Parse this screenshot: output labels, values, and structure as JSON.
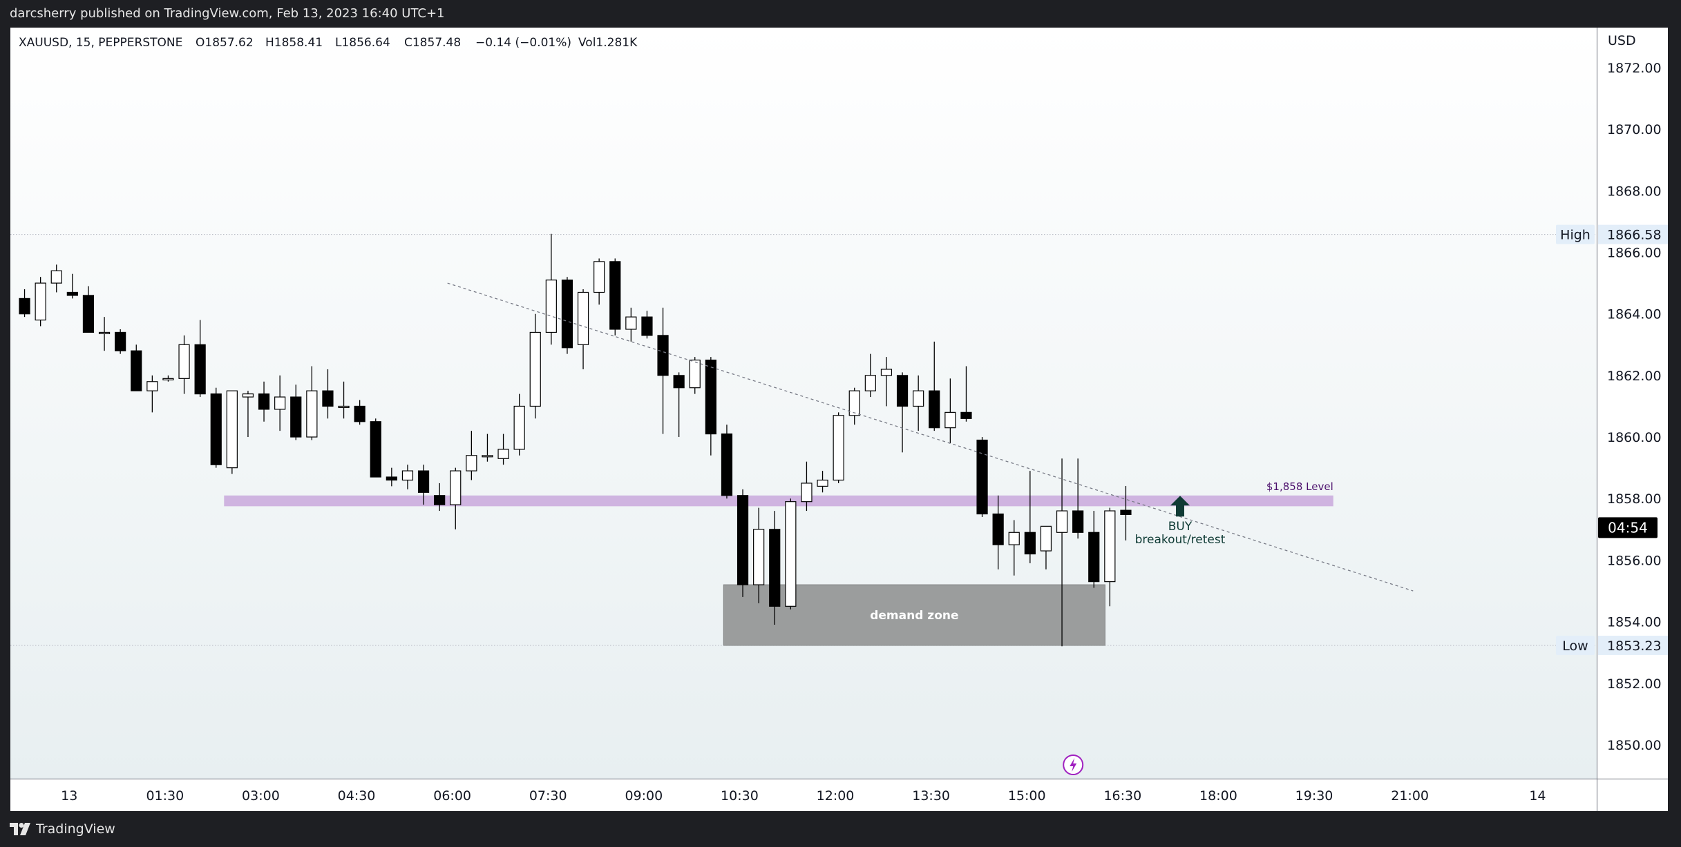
{
  "header": {
    "published": "darcsherry published on TradingView.com, Feb 13, 2023 16:40 UTC+1"
  },
  "legend": {
    "symbol": "XAUUSD, 15, PEPPERSTONE",
    "open": "O1857.62",
    "high": "H1858.41",
    "low": "L1856.64",
    "close": "C1857.48",
    "change": "−0.14 (−0.01%)",
    "volume": "Vol1.281K"
  },
  "footer": {
    "brand": "TradingView"
  },
  "colors": {
    "bull_body": "#ffffff",
    "bear_body": "#000000",
    "wick": "#000000",
    "level_band": "#c9a8dc",
    "demand_zone": "#9b9d9d",
    "buy_arrow": "#0f3b35",
    "level_text": "#4b0f6b",
    "countdown_bg": "#000000",
    "flash_icon": "#a020c0"
  },
  "chart_data": {
    "type": "candlestick",
    "symbol": "XAUUSD",
    "interval": "15",
    "exchange": "PEPPERSTONE",
    "currency": "USD",
    "ylim": [
      1848.9,
      1873.3
    ],
    "y_ticks": [
      "1872.00",
      "1870.00",
      "1868.00",
      "1866.00",
      "1864.00",
      "1862.00",
      "1860.00",
      "1858.00",
      "1856.00",
      "1854.00",
      "1852.00",
      "1850.00"
    ],
    "x_ticks": [
      {
        "label": "13",
        "bar": 3.3
      },
      {
        "label": "01:30",
        "bar": 9.3
      },
      {
        "label": "03:00",
        "bar": 15.3
      },
      {
        "label": "04:30",
        "bar": 21.3
      },
      {
        "label": "06:00",
        "bar": 27.3
      },
      {
        "label": "07:30",
        "bar": 33.3
      },
      {
        "label": "09:00",
        "bar": 39.3
      },
      {
        "label": "10:30",
        "bar": 45.3
      },
      {
        "label": "12:00",
        "bar": 51.3
      },
      {
        "label": "13:30",
        "bar": 57.3
      },
      {
        "label": "15:00",
        "bar": 63.3
      },
      {
        "label": "16:30",
        "bar": 69.3
      },
      {
        "label": "18:00",
        "bar": 75.3
      },
      {
        "label": "19:30",
        "bar": 81.3
      },
      {
        "label": "21:00",
        "bar": 87.3
      },
      {
        "label": "14",
        "bar": 95.3
      }
    ],
    "candles": [
      {
        "o": 1864.5,
        "h": 1864.8,
        "l": 1863.9,
        "c": 1864.0
      },
      {
        "o": 1863.8,
        "h": 1865.2,
        "l": 1863.6,
        "c": 1865.0
      },
      {
        "o": 1865.0,
        "h": 1865.6,
        "l": 1864.7,
        "c": 1865.4
      },
      {
        "o": 1864.7,
        "h": 1865.3,
        "l": 1864.5,
        "c": 1864.6
      },
      {
        "o": 1864.6,
        "h": 1864.9,
        "l": 1863.4,
        "c": 1863.4
      },
      {
        "o": 1863.4,
        "h": 1863.9,
        "l": 1862.8,
        "c": 1863.4
      },
      {
        "o": 1863.4,
        "h": 1863.5,
        "l": 1862.7,
        "c": 1862.8
      },
      {
        "o": 1862.8,
        "h": 1863.0,
        "l": 1861.5,
        "c": 1861.5
      },
      {
        "o": 1861.5,
        "h": 1862.0,
        "l": 1860.8,
        "c": 1861.8
      },
      {
        "o": 1861.9,
        "h": 1862.0,
        "l": 1861.8,
        "c": 1861.9
      },
      {
        "o": 1861.9,
        "h": 1863.3,
        "l": 1861.4,
        "c": 1863.0
      },
      {
        "o": 1863.0,
        "h": 1863.8,
        "l": 1861.3,
        "c": 1861.4
      },
      {
        "o": 1861.4,
        "h": 1861.6,
        "l": 1859.0,
        "c": 1859.1
      },
      {
        "o": 1859.0,
        "h": 1861.4,
        "l": 1858.8,
        "c": 1861.5
      },
      {
        "o": 1861.3,
        "h": 1861.5,
        "l": 1860.0,
        "c": 1861.4
      },
      {
        "o": 1861.4,
        "h": 1861.8,
        "l": 1860.5,
        "c": 1860.9
      },
      {
        "o": 1860.9,
        "h": 1862.0,
        "l": 1860.2,
        "c": 1861.3
      },
      {
        "o": 1861.3,
        "h": 1861.7,
        "l": 1859.9,
        "c": 1860.0
      },
      {
        "o": 1860.0,
        "h": 1862.3,
        "l": 1859.9,
        "c": 1861.5
      },
      {
        "o": 1861.5,
        "h": 1862.2,
        "l": 1860.6,
        "c": 1861.0
      },
      {
        "o": 1861.0,
        "h": 1861.8,
        "l": 1860.6,
        "c": 1861.0
      },
      {
        "o": 1861.0,
        "h": 1861.2,
        "l": 1860.4,
        "c": 1860.5
      },
      {
        "o": 1860.5,
        "h": 1860.6,
        "l": 1858.7,
        "c": 1858.7
      },
      {
        "o": 1858.7,
        "h": 1859.0,
        "l": 1858.4,
        "c": 1858.6
      },
      {
        "o": 1858.6,
        "h": 1859.1,
        "l": 1858.3,
        "c": 1858.9
      },
      {
        "o": 1858.9,
        "h": 1859.1,
        "l": 1857.8,
        "c": 1858.2
      },
      {
        "o": 1858.1,
        "h": 1858.5,
        "l": 1857.6,
        "c": 1857.8
      },
      {
        "o": 1857.8,
        "h": 1859.0,
        "l": 1857.0,
        "c": 1858.9
      },
      {
        "o": 1858.9,
        "h": 1860.2,
        "l": 1858.6,
        "c": 1859.4
      },
      {
        "o": 1859.4,
        "h": 1860.1,
        "l": 1859.2,
        "c": 1859.4
      },
      {
        "o": 1859.3,
        "h": 1860.1,
        "l": 1859.1,
        "c": 1859.6
      },
      {
        "o": 1859.6,
        "h": 1861.4,
        "l": 1859.4,
        "c": 1861.0
      },
      {
        "o": 1861.0,
        "h": 1864.0,
        "l": 1860.6,
        "c": 1863.4
      },
      {
        "o": 1863.4,
        "h": 1866.6,
        "l": 1863.0,
        "c": 1865.1
      },
      {
        "o": 1865.1,
        "h": 1865.2,
        "l": 1862.7,
        "c": 1862.9
      },
      {
        "o": 1863.0,
        "h": 1864.8,
        "l": 1862.2,
        "c": 1864.7
      },
      {
        "o": 1864.7,
        "h": 1865.8,
        "l": 1864.3,
        "c": 1865.7
      },
      {
        "o": 1865.7,
        "h": 1865.8,
        "l": 1863.3,
        "c": 1863.5
      },
      {
        "o": 1863.5,
        "h": 1864.2,
        "l": 1863.1,
        "c": 1863.9
      },
      {
        "o": 1863.9,
        "h": 1864.1,
        "l": 1863.2,
        "c": 1863.3
      },
      {
        "o": 1863.3,
        "h": 1864.2,
        "l": 1860.1,
        "c": 1862.0
      },
      {
        "o": 1862.0,
        "h": 1862.1,
        "l": 1860.0,
        "c": 1861.6
      },
      {
        "o": 1861.6,
        "h": 1862.6,
        "l": 1861.4,
        "c": 1862.5
      },
      {
        "o": 1862.5,
        "h": 1862.6,
        "l": 1859.4,
        "c": 1860.1
      },
      {
        "o": 1860.1,
        "h": 1860.4,
        "l": 1858.0,
        "c": 1858.1
      },
      {
        "o": 1858.1,
        "h": 1858.3,
        "l": 1854.8,
        "c": 1855.2
      },
      {
        "o": 1855.2,
        "h": 1857.7,
        "l": 1854.6,
        "c": 1857.0
      },
      {
        "o": 1857.0,
        "h": 1857.6,
        "l": 1853.9,
        "c": 1854.5
      },
      {
        "o": 1854.5,
        "h": 1858.0,
        "l": 1854.4,
        "c": 1857.9
      },
      {
        "o": 1857.9,
        "h": 1859.2,
        "l": 1857.6,
        "c": 1858.5
      },
      {
        "o": 1858.4,
        "h": 1858.9,
        "l": 1858.2,
        "c": 1858.6
      },
      {
        "o": 1858.6,
        "h": 1860.8,
        "l": 1858.5,
        "c": 1860.7
      },
      {
        "o": 1860.7,
        "h": 1861.6,
        "l": 1860.4,
        "c": 1861.5
      },
      {
        "o": 1861.5,
        "h": 1862.7,
        "l": 1861.3,
        "c": 1862.0
      },
      {
        "o": 1862.0,
        "h": 1862.6,
        "l": 1861.0,
        "c": 1862.2
      },
      {
        "o": 1862.0,
        "h": 1862.1,
        "l": 1859.5,
        "c": 1861.0
      },
      {
        "o": 1861.0,
        "h": 1862.0,
        "l": 1860.2,
        "c": 1861.5
      },
      {
        "o": 1861.5,
        "h": 1863.1,
        "l": 1860.2,
        "c": 1860.3
      },
      {
        "o": 1860.3,
        "h": 1861.9,
        "l": 1859.8,
        "c": 1860.8
      },
      {
        "o": 1860.8,
        "h": 1862.3,
        "l": 1860.5,
        "c": 1860.6
      },
      {
        "o": 1859.9,
        "h": 1860.0,
        "l": 1857.4,
        "c": 1857.5
      },
      {
        "o": 1857.5,
        "h": 1858.1,
        "l": 1855.7,
        "c": 1856.5
      },
      {
        "o": 1856.5,
        "h": 1857.3,
        "l": 1855.5,
        "c": 1856.9
      },
      {
        "o": 1856.9,
        "h": 1858.9,
        "l": 1855.9,
        "c": 1856.2
      },
      {
        "o": 1856.3,
        "h": 1857.1,
        "l": 1855.7,
        "c": 1857.1
      },
      {
        "o": 1856.9,
        "h": 1859.3,
        "l": 1853.2,
        "c": 1857.6
      },
      {
        "o": 1857.6,
        "h": 1859.3,
        "l": 1856.7,
        "c": 1856.9
      },
      {
        "o": 1856.9,
        "h": 1857.6,
        "l": 1855.1,
        "c": 1855.3
      },
      {
        "o": 1855.3,
        "h": 1857.7,
        "l": 1854.5,
        "c": 1857.6
      },
      {
        "o": 1857.62,
        "h": 1858.41,
        "l": 1856.64,
        "c": 1857.48
      }
    ],
    "high_marker": {
      "label": "High",
      "price": 1866.58,
      "price_label": "1866.58"
    },
    "low_marker": {
      "label": "Low",
      "price": 1853.23,
      "price_label": "1853.23"
    },
    "current_price": {
      "price": 1857.48,
      "label": "04:54"
    },
    "level": {
      "price_top": 1858.1,
      "price_bottom": 1857.75,
      "from_bar": 13,
      "to_bar": 82.5,
      "label": "$1,858 Level"
    },
    "demand_zone": {
      "price_top": 1855.2,
      "price_bottom": 1853.23,
      "from_bar": 44.3,
      "to_bar": 68.2,
      "label": "demand zone"
    },
    "trendline": {
      "from": {
        "bar": 27,
        "price": 1865.0
      },
      "to": {
        "bar": 87.5,
        "price": 1855.0
      }
    },
    "buy_annotation": {
      "bar": 72.9,
      "price": 1858.0,
      "line1": "BUY",
      "line2": "breakout/retest"
    },
    "flash_icon_bar": 66.2
  }
}
